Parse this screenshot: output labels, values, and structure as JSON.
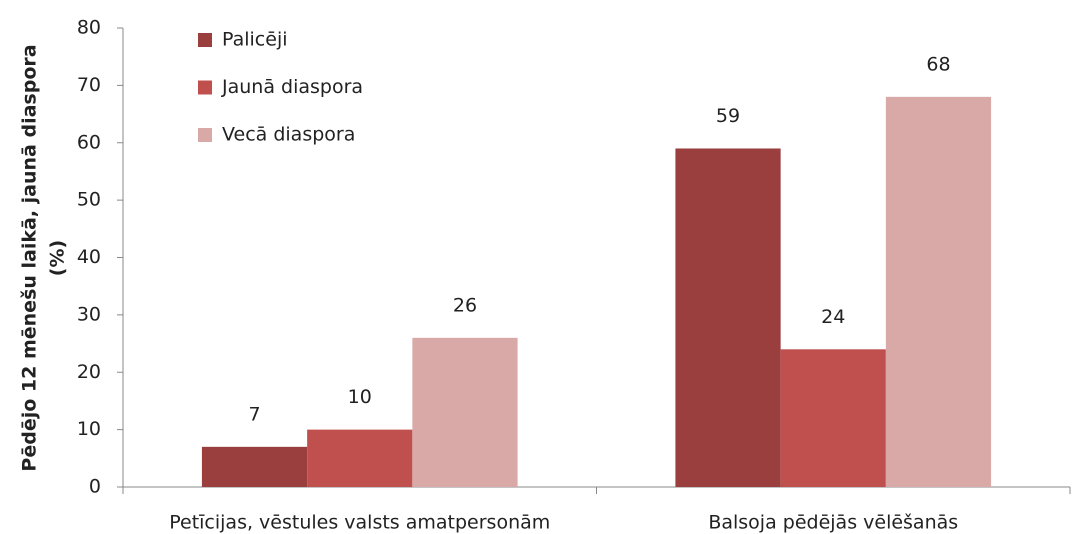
{
  "chart_data": {
    "type": "bar",
    "ylabel_lines": [
      "Pēdējo 12 mēnešu laikā, jaunā diaspora",
      "(%)"
    ],
    "categories": [
      "Petīcijas, vēstules valsts amatpersonām",
      "Balsoja pēdējās vēlēšanās"
    ],
    "series": [
      {
        "name": "Palicēji",
        "color": "#9b3f3e",
        "values": [
          7,
          59
        ]
      },
      {
        "name": "Jaunā diaspora",
        "color": "#c0504d",
        "values": [
          10,
          24
        ]
      },
      {
        "name": "Vecā diaspora",
        "color": "#d9a9a8",
        "values": [
          26,
          68
        ]
      }
    ],
    "ylim": [
      0,
      80
    ],
    "yticks": [
      0,
      10,
      20,
      30,
      40,
      50,
      60,
      70,
      80
    ],
    "legend": "upper left"
  }
}
